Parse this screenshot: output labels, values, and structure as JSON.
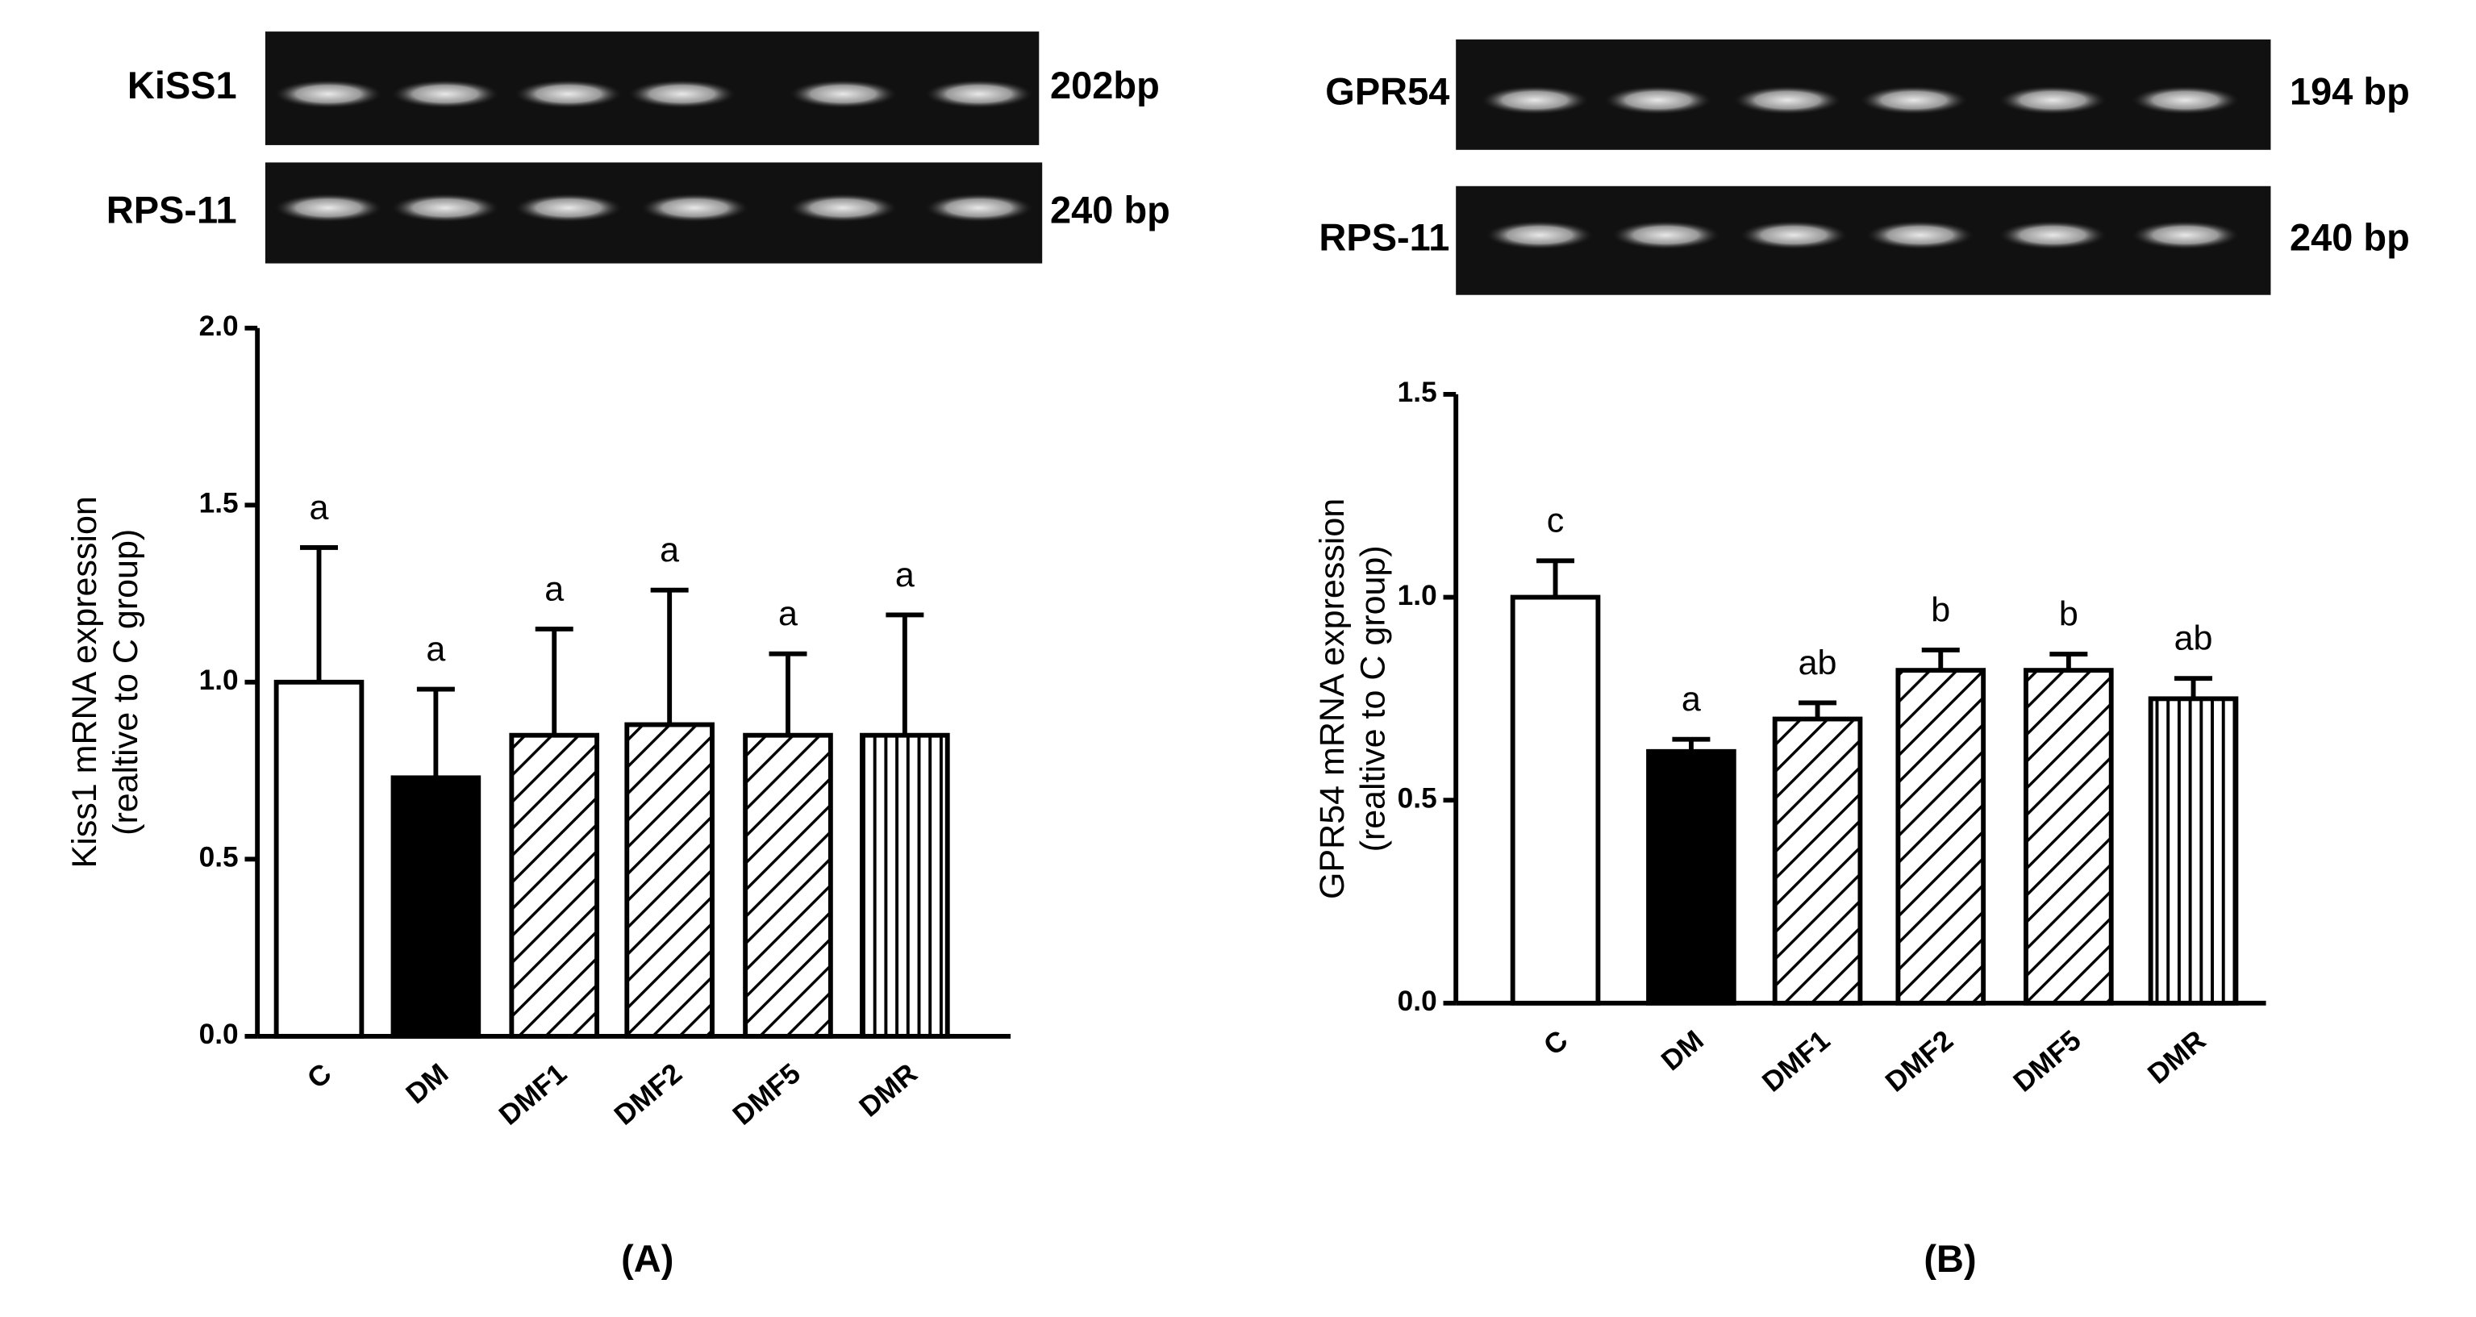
{
  "chart_data": [
    {
      "type": "bar",
      "panel_label": "(A)",
      "gels": [
        {
          "name": "KiSS1",
          "size": "202bp"
        },
        {
          "name": "RPS-11",
          "size": "240 bp"
        }
      ],
      "y_label": [
        "Kiss1 mRNA expression",
        "(realtive to C group)"
      ],
      "categories": [
        "C",
        "DM",
        "DMF1",
        "DMF2",
        "DMF5",
        "DMR"
      ],
      "values": [
        1.0,
        0.73,
        0.85,
        0.88,
        0.85,
        0.85
      ],
      "errors": [
        0.38,
        0.25,
        0.3,
        0.38,
        0.23,
        0.34
      ],
      "annotations": [
        "a",
        "a",
        "a",
        "a",
        "a",
        "a"
      ],
      "patterns": [
        "open",
        "solid",
        "diagonal",
        "diagonal",
        "diagonal",
        "vertical"
      ],
      "color": "#000000",
      "ylim": [
        0,
        2
      ],
      "yticks": [
        {
          "value": 0,
          "label": "0.0"
        },
        {
          "value": 0.5,
          "label": "0.5"
        },
        {
          "value": 1,
          "label": "1.0"
        },
        {
          "value": 1.5,
          "label": "1.5"
        },
        {
          "value": 2,
          "label": "2.0"
        }
      ]
    },
    {
      "type": "bar",
      "panel_label": "(B)",
      "gels": [
        {
          "name": "GPR54",
          "size": "194 bp"
        },
        {
          "name": "RPS-11",
          "size": "240 bp"
        }
      ],
      "y_label": [
        "GPR54 mRNA expression",
        "(realtive to C group)"
      ],
      "categories": [
        "C",
        "DM",
        "DMF1",
        "DMF2",
        "DMF5",
        "DMR"
      ],
      "values": [
        1.0,
        0.62,
        0.7,
        0.82,
        0.82,
        0.75
      ],
      "errors": [
        0.09,
        0.03,
        0.04,
        0.05,
        0.04,
        0.05
      ],
      "annotations": [
        "c",
        "a",
        "ab",
        "b",
        "b",
        "ab"
      ],
      "patterns": [
        "open",
        "solid",
        "diagonal",
        "diagonal",
        "diagonal",
        "vertical"
      ],
      "color": "#000000",
      "ylim": [
        0,
        1.5
      ],
      "yticks": [
        {
          "value": 0,
          "label": "0.0"
        },
        {
          "value": 0.5,
          "label": "0.5"
        },
        {
          "value": 1,
          "label": "1.0"
        },
        {
          "value": 1.5,
          "label": "1.5"
        }
      ]
    }
  ]
}
